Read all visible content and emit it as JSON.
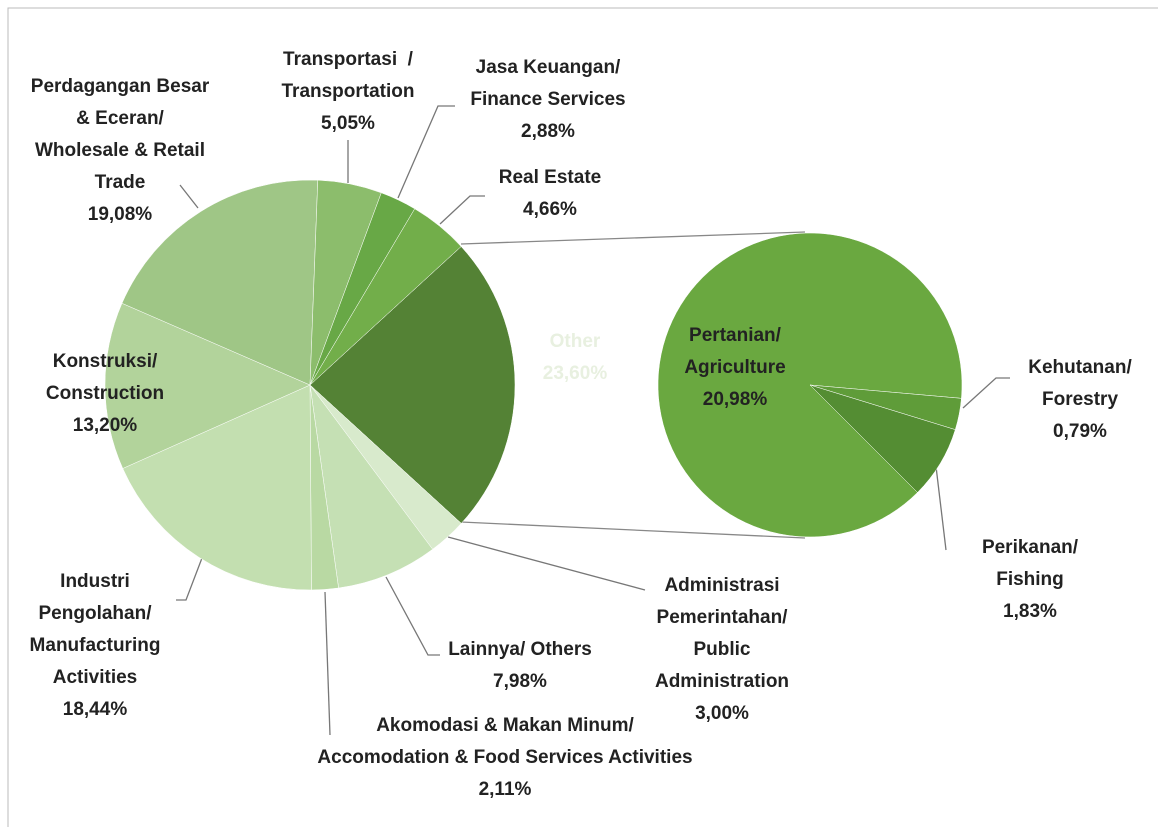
{
  "chart_data": {
    "type": "pie_of_pie",
    "main": {
      "categories": [
        "Other",
        "Administrasi\nPemerintahan/\nPublic\nAdministration",
        "Lainnya/ Others",
        "Akomodasi & Makan Minum/\nAccomodation & Food Services Activities",
        "Industri\nPengolahan/\nManufacturing\nActivities",
        "Konstruksi/\nConstruction",
        "Perdagangan Besar\n& Eceran/\nWholesale & Retail\nTrade",
        "Transportasi  /\nTransportation",
        "Jasa Keuangan/\nFinance Services",
        "Real Estate"
      ],
      "values": [
        23.6,
        3.0,
        7.98,
        2.11,
        18.44,
        13.2,
        19.08,
        5.05,
        2.88,
        4.66
      ],
      "value_labels": [
        "23,60%",
        "3,00%",
        "7,98%",
        "2,11%",
        "18,44%",
        "13,20%",
        "19,08%",
        "5,05%",
        "2,88%",
        "4,66%"
      ],
      "colors": [
        "#548235",
        "#d8eacc",
        "#c5e0b4",
        "#b9d9a3",
        "#c3dfb0",
        "#b2d39b",
        "#9fc686",
        "#8cbd6c",
        "#68a846",
        "#72ae4a"
      ]
    },
    "sub": {
      "categories": [
        "Pertanian/\nAgriculture",
        "Kehutanan/\nForestry",
        "Perikanan/\nFishing"
      ],
      "values": [
        20.98,
        0.79,
        1.83
      ],
      "value_labels": [
        "20,98%",
        "0,79%",
        "1,83%"
      ],
      "colors": [
        "#6aa840",
        "#5f9c39",
        "#548d33"
      ]
    }
  }
}
